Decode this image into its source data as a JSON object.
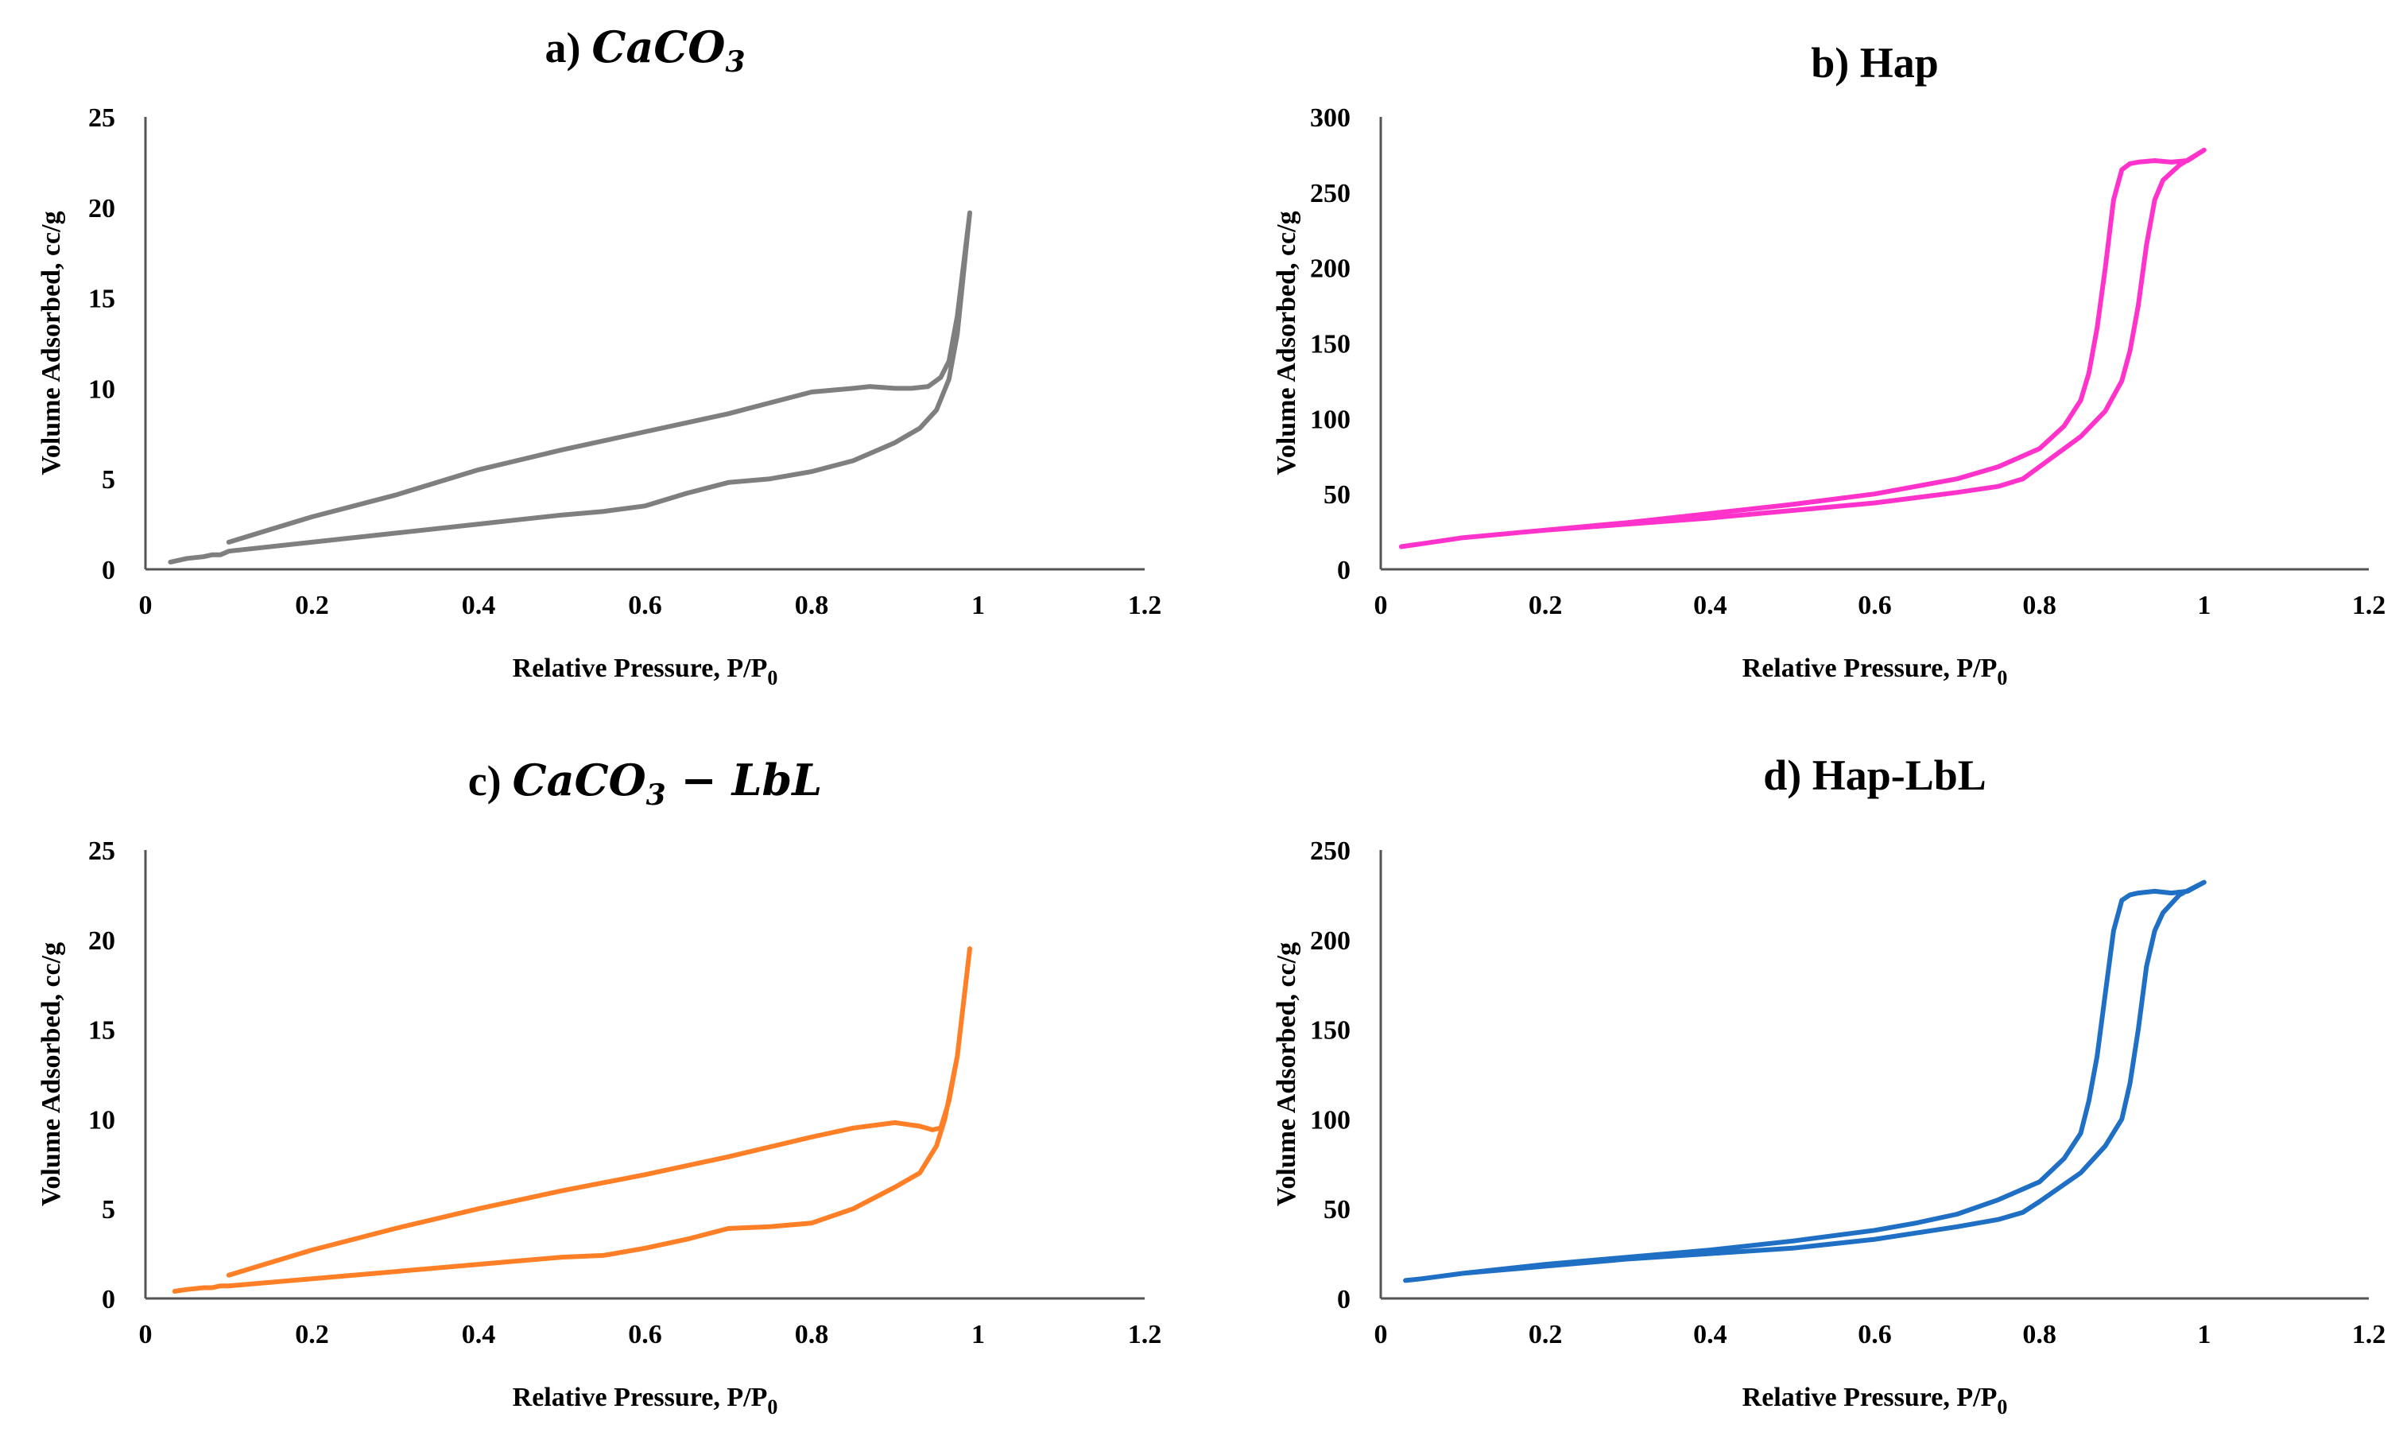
{
  "chart_data": [
    {
      "id": "a",
      "type": "line",
      "panel": "a)",
      "title_text": "CaCO",
      "title_sub": "3",
      "title_suffix": "",
      "title_style": "math",
      "xlabel": "Relative Pressure, P/P",
      "xlabel_sub": "0",
      "ylabel": "Volume Adsorbed, cc/g",
      "xlim": [
        0,
        1.2
      ],
      "ylim": [
        0,
        25
      ],
      "xticks": [
        "0",
        "0.2",
        "0.4",
        "0.6",
        "0.8",
        "1",
        "1.2"
      ],
      "yticks": [
        "0",
        "5",
        "10",
        "15",
        "20",
        "25"
      ],
      "color": "#7f7f7f",
      "series": [
        {
          "name": "CaCO3",
          "x": [
            0.03,
            0.05,
            0.07,
            0.08,
            0.09,
            0.1,
            0.2,
            0.3,
            0.4,
            0.5,
            0.55,
            0.6,
            0.65,
            0.7,
            0.75,
            0.8,
            0.85,
            0.9,
            0.93,
            0.95,
            0.965,
            0.975,
            0.99,
            0.975,
            0.965,
            0.955,
            0.94,
            0.92,
            0.9,
            0.87,
            0.85,
            0.8,
            0.75,
            0.7,
            0.6,
            0.5,
            0.4,
            0.3,
            0.2,
            0.15,
            0.1
          ],
          "y": [
            0.4,
            0.6,
            0.7,
            0.8,
            0.8,
            1.0,
            1.5,
            2.0,
            2.5,
            3.0,
            3.2,
            3.5,
            4.2,
            4.8,
            5.0,
            5.4,
            6.0,
            7.0,
            7.8,
            8.8,
            10.5,
            13.0,
            19.7,
            14.0,
            11.5,
            10.6,
            10.1,
            10.0,
            10.0,
            10.1,
            10.0,
            9.8,
            9.2,
            8.6,
            7.6,
            6.6,
            5.5,
            4.1,
            2.9,
            2.2,
            1.5
          ]
        }
      ]
    },
    {
      "id": "b",
      "type": "line",
      "panel": "b) Hap",
      "title_text": "",
      "title_sub": "",
      "title_suffix": "",
      "title_style": "plain",
      "xlabel": "Relative Pressure, P/P",
      "xlabel_sub": "0",
      "ylabel": "Volume Adsorbed, cc/g",
      "xlim": [
        0,
        1.2
      ],
      "ylim": [
        0,
        300
      ],
      "xticks": [
        "0",
        "0.2",
        "0.4",
        "0.6",
        "0.8",
        "1",
        "1.2"
      ],
      "yticks": [
        "0",
        "50",
        "100",
        "150",
        "200",
        "250",
        "300"
      ],
      "color": "#ff33cc",
      "series": [
        {
          "name": "Hap",
          "x": [
            0.025,
            0.05,
            0.1,
            0.2,
            0.3,
            0.4,
            0.5,
            0.6,
            0.7,
            0.75,
            0.78,
            0.8,
            0.85,
            0.88,
            0.9,
            0.91,
            0.92,
            0.93,
            0.94,
            0.95,
            0.97,
            1.0,
            0.98,
            0.96,
            0.94,
            0.92,
            0.91,
            0.9,
            0.89,
            0.88,
            0.87,
            0.86,
            0.85,
            0.83,
            0.8,
            0.75,
            0.7,
            0.65,
            0.6,
            0.5,
            0.4,
            0.3,
            0.2,
            0.1,
            0.05,
            0.025
          ],
          "y": [
            15,
            17,
            21,
            26,
            30,
            34,
            39,
            44,
            51,
            55,
            60,
            68,
            88,
            105,
            125,
            145,
            175,
            215,
            245,
            258,
            268,
            278,
            271,
            270,
            271,
            270,
            269,
            265,
            245,
            200,
            160,
            130,
            112,
            95,
            80,
            68,
            60,
            55,
            50,
            43,
            37,
            31,
            26,
            21,
            17,
            15
          ]
        }
      ]
    },
    {
      "id": "c",
      "type": "line",
      "panel": "c)",
      "title_text": "CaCO",
      "title_sub": "3",
      "title_suffix": " − LbL",
      "title_style": "math",
      "xlabel": "Relative Pressure, P/P",
      "xlabel_sub": "0",
      "ylabel": "Volume Adsorbed, cc/g",
      "xlim": [
        0,
        1.2
      ],
      "ylim": [
        0,
        25
      ],
      "xticks": [
        "0",
        "0.2",
        "0.4",
        "0.6",
        "0.8",
        "1",
        "1.2"
      ],
      "yticks": [
        "0",
        "5",
        "10",
        "15",
        "20",
        "25"
      ],
      "color": "#ff7f27",
      "series": [
        {
          "name": "CaCO3 - LbL",
          "x": [
            0.035,
            0.05,
            0.07,
            0.08,
            0.09,
            0.1,
            0.2,
            0.3,
            0.4,
            0.5,
            0.55,
            0.6,
            0.65,
            0.7,
            0.75,
            0.8,
            0.85,
            0.9,
            0.93,
            0.95,
            0.96,
            0.975,
            0.99,
            0.975,
            0.965,
            0.955,
            0.945,
            0.93,
            0.9,
            0.85,
            0.8,
            0.7,
            0.6,
            0.5,
            0.4,
            0.3,
            0.2,
            0.15,
            0.1
          ],
          "y": [
            0.4,
            0.5,
            0.6,
            0.6,
            0.7,
            0.7,
            1.1,
            1.5,
            1.9,
            2.3,
            2.4,
            2.8,
            3.3,
            3.9,
            4.0,
            4.2,
            5.0,
            6.2,
            7.0,
            8.5,
            10.0,
            13.5,
            19.5,
            13.5,
            11.0,
            9.5,
            9.4,
            9.6,
            9.8,
            9.5,
            9.0,
            7.9,
            6.9,
            6.0,
            5.0,
            3.9,
            2.7,
            2.0,
            1.3
          ]
        }
      ]
    },
    {
      "id": "d",
      "type": "line",
      "panel": "d) Hap-LbL",
      "title_text": "",
      "title_sub": "",
      "title_suffix": "",
      "title_style": "plain",
      "xlabel": "Relative Pressure, P/P",
      "xlabel_sub": "0",
      "ylabel": "Volume Adsorbed, cc/g",
      "xlim": [
        0,
        1.2
      ],
      "ylim": [
        0,
        250
      ],
      "xticks": [
        "0",
        "0.2",
        "0.4",
        "0.6",
        "0.8",
        "1",
        "1.2"
      ],
      "yticks": [
        "0",
        "50",
        "100",
        "150",
        "200",
        "250"
      ],
      "color": "#1f6fc5",
      "series": [
        {
          "name": "Hap-LbL",
          "x": [
            0.03,
            0.05,
            0.1,
            0.2,
            0.3,
            0.4,
            0.5,
            0.6,
            0.7,
            0.75,
            0.78,
            0.8,
            0.85,
            0.88,
            0.9,
            0.91,
            0.92,
            0.93,
            0.94,
            0.95,
            0.97,
            1.0,
            0.98,
            0.96,
            0.94,
            0.92,
            0.91,
            0.9,
            0.89,
            0.88,
            0.87,
            0.86,
            0.85,
            0.83,
            0.8,
            0.75,
            0.7,
            0.65,
            0.6,
            0.5,
            0.4,
            0.3,
            0.2,
            0.1,
            0.05,
            0.03
          ],
          "y": [
            10,
            11,
            14,
            18,
            22,
            25,
            28,
            33,
            40,
            44,
            48,
            54,
            70,
            85,
            100,
            120,
            150,
            185,
            205,
            215,
            225,
            232,
            227,
            226,
            227,
            226,
            225,
            222,
            205,
            170,
            135,
            110,
            92,
            78,
            65,
            55,
            47,
            42,
            38,
            32,
            27,
            23,
            19,
            14,
            11,
            10
          ]
        }
      ]
    }
  ]
}
